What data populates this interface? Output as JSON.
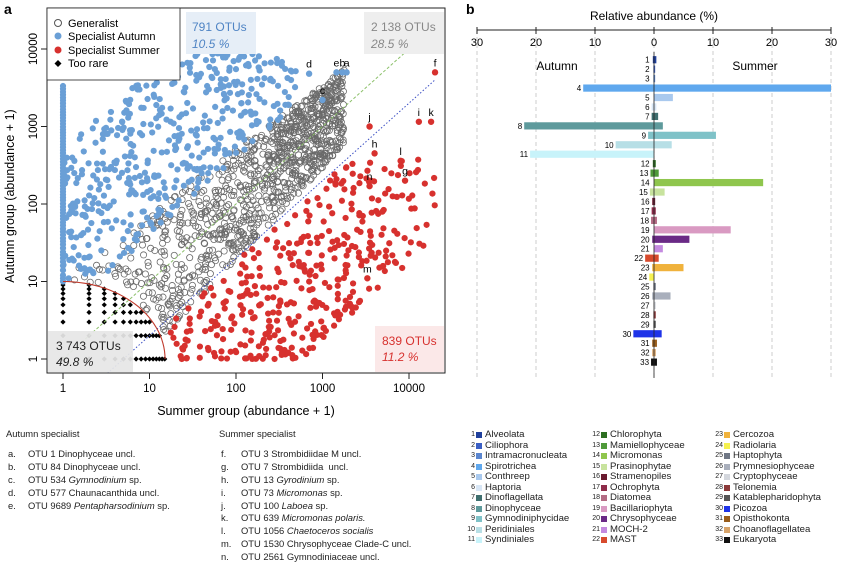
{
  "panel_a": {
    "letter": "a",
    "legend": [
      {
        "label": "Generalist",
        "marker": "circle-open",
        "color": "#555555"
      },
      {
        "label": "Specialist Autumn",
        "marker": "circle",
        "color": "#6a9fd6"
      },
      {
        "label": "Specialist Summer",
        "marker": "circle",
        "color": "#d7312e"
      },
      {
        "label": "Too rare",
        "marker": "diamond",
        "color": "#000000"
      }
    ],
    "boxes": {
      "autumn": {
        "count": "791 OTUs",
        "pct": "10.5 %",
        "color": "#4f84c4",
        "bg": "#e6eef7"
      },
      "generalist": {
        "count": "2 138 OTUs",
        "pct": "28.5 %",
        "color": "#777777",
        "bg": "#efefef"
      },
      "summer": {
        "count": "839 OTUs",
        "pct": "11.2 %",
        "color": "#d7312e",
        "bg": "#fbe8e8"
      },
      "rare": {
        "count": "3 743 OTUs",
        "pct": "49.8 %",
        "color": "#222222",
        "bg": "#e8e8e8"
      }
    },
    "point_labels": [
      "a",
      "b",
      "c",
      "d",
      "e",
      "f",
      "g",
      "h",
      "i",
      "j",
      "k",
      "l",
      "m",
      "n"
    ]
  },
  "chart_data": [
    {
      "type": "scatter",
      "xlabel": "Summer group (abundance + 1)",
      "ylabel": "Autumn group (abundance + 1)",
      "x_scale": "log",
      "y_scale": "log",
      "xlim": [
        1,
        20000
      ],
      "ylim": [
        1,
        20000
      ],
      "x_ticks": [
        "1",
        "10",
        "100",
        "1000",
        "10000"
      ],
      "y_ticks": [
        "1",
        "10",
        "100",
        "1000",
        "10000"
      ],
      "categories": [
        "Generalist",
        "Specialist Autumn",
        "Specialist Summer",
        "Too rare"
      ],
      "counts": [
        2138,
        791,
        839,
        3743
      ],
      "percentages": [
        28.5,
        10.5,
        11.2,
        49.8
      ],
      "labeled_points": [
        {
          "label": "a",
          "x": 1900,
          "y": 5000
        },
        {
          "label": "b",
          "x": 1700,
          "y": 5000
        },
        {
          "label": "c",
          "x": 1000,
          "y": 2200
        },
        {
          "label": "d",
          "x": 700,
          "y": 4800
        },
        {
          "label": "e",
          "x": 1450,
          "y": 5000
        },
        {
          "label": "f",
          "x": 20000,
          "y": 5000
        },
        {
          "label": "g",
          "x": 9000,
          "y": 200
        },
        {
          "label": "h",
          "x": 4000,
          "y": 450
        },
        {
          "label": "i",
          "x": 13000,
          "y": 1150
        },
        {
          "label": "j",
          "x": 3500,
          "y": 1000
        },
        {
          "label": "k",
          "x": 18000,
          "y": 1150
        },
        {
          "label": "l",
          "x": 8000,
          "y": 360
        },
        {
          "label": "m",
          "x": 3300,
          "y": 11
        },
        {
          "label": "n",
          "x": 3500,
          "y": 170
        }
      ]
    },
    {
      "type": "bar",
      "title": "Relative abundance (%)",
      "orientation": "horizontal",
      "x_ticks": [
        "30",
        "20",
        "10",
        "0",
        "10",
        "20",
        "30"
      ],
      "xlim": [
        -30,
        30
      ],
      "side_labels": {
        "left": "Autumn",
        "right": "Summer"
      },
      "categories": [
        "1",
        "2",
        "3",
        "4",
        "5",
        "6",
        "7",
        "8",
        "9",
        "10",
        "11",
        "12",
        "13",
        "14",
        "15",
        "16",
        "17",
        "18",
        "19",
        "20",
        "21",
        "22",
        "23",
        "24",
        "25",
        "26",
        "27",
        "28",
        "29",
        "30",
        "31",
        "32",
        "33"
      ],
      "series": [
        {
          "name": "Autumn",
          "values": [
            0.2,
            0.1,
            0.1,
            12,
            0,
            0.4,
            0.4,
            22,
            1,
            6.5,
            21,
            0.2,
            0.6,
            0,
            0.7,
            0.3,
            0.4,
            0.5,
            0,
            0.3,
            0,
            1.5,
            0.3,
            0.8,
            0.1,
            0.3,
            0,
            0.1,
            0.1,
            3.5,
            0.3,
            0.3,
            0.5
          ]
        },
        {
          "name": "Summer",
          "values": [
            0.4,
            0.2,
            0.2,
            30,
            3.2,
            0.4,
            0.7,
            1.5,
            10.5,
            3,
            0,
            0.3,
            0.8,
            18.5,
            1.8,
            0.2,
            0.3,
            0.5,
            13,
            6,
            1.5,
            0.8,
            5,
            0,
            0.3,
            2.8,
            0.3,
            0.3,
            0.3,
            1.3,
            0.5,
            0.3,
            0.5
          ]
        }
      ]
    }
  ],
  "panel_b": {
    "letter": "b",
    "legend": [
      {
        "num": "1",
        "label": "Alveolata",
        "color": "#1f3f9c"
      },
      {
        "num": "2",
        "label": "Ciliophora",
        "color": "#3b5fc4"
      },
      {
        "num": "3",
        "label": "Intramacronucleata",
        "color": "#5b86cf"
      },
      {
        "num": "4",
        "label": "Spirotrichea",
        "color": "#5fa8ee"
      },
      {
        "num": "5",
        "label": "Conthreep",
        "color": "#a9c9ee"
      },
      {
        "num": "6",
        "label": "Haptoria",
        "color": "#d8e6f5"
      },
      {
        "num": "7",
        "label": "Dinoflagellata",
        "color": "#3f6f6f"
      },
      {
        "num": "8",
        "label": "Dinophyceae",
        "color": "#5e9a9c"
      },
      {
        "num": "9",
        "label": "Gymnodiniphycidae",
        "color": "#7fc2c8"
      },
      {
        "num": "10",
        "label": "Peridiniales",
        "color": "#b7dfe6"
      },
      {
        "num": "11",
        "label": "Syndiniales",
        "color": "#c8f3fa"
      },
      {
        "num": "12",
        "label": "Chlorophyta",
        "color": "#2e6f22"
      },
      {
        "num": "13",
        "label": "Mamiellophyceae",
        "color": "#4f9a3a"
      },
      {
        "num": "14",
        "label": "Micromonas",
        "color": "#8fc64d"
      },
      {
        "num": "15",
        "label": "Prasinophytae",
        "color": "#c8e39e"
      },
      {
        "num": "16",
        "label": "Stramenopiles",
        "color": "#6a1a2f"
      },
      {
        "num": "17",
        "label": "Ochrophyta",
        "color": "#8e2c4a"
      },
      {
        "num": "18",
        "label": "Diatomea",
        "color": "#b36b84"
      },
      {
        "num": "19",
        "label": "Bacillariophyta",
        "color": "#d99ac2"
      },
      {
        "num": "20",
        "label": "Chrysophyceae",
        "color": "#6a2a86"
      },
      {
        "num": "21",
        "label": "MOCH-2",
        "color": "#c48ae0"
      },
      {
        "num": "22",
        "label": "MAST",
        "color": "#d74a2d"
      },
      {
        "num": "23",
        "label": "Cercozoa",
        "color": "#f0b23c"
      },
      {
        "num": "24",
        "label": "Radiolaria",
        "color": "#f6f14f"
      },
      {
        "num": "25",
        "label": "Haptophyta",
        "color": "#6f7785"
      },
      {
        "num": "26",
        "label": "Prymnesiophyceae",
        "color": "#a9afbc"
      },
      {
        "num": "27",
        "label": "Cryptophyceae",
        "color": "#d4d7dd"
      },
      {
        "num": "28",
        "label": "Telonemia",
        "color": "#8c3a3a"
      },
      {
        "num": "29",
        "label": "Katablepharidophyta",
        "color": "#555555"
      },
      {
        "num": "30",
        "label": "Picozoa",
        "color": "#1e33e8"
      },
      {
        "num": "31",
        "label": "Opisthokonta",
        "color": "#9a5e1c"
      },
      {
        "num": "32",
        "label": "Choanoflagellatea",
        "color": "#d8a46a"
      },
      {
        "num": "33",
        "label": "Eukaryota",
        "color": "#111111"
      }
    ]
  },
  "list_autumn": {
    "title": "Autumn specialist",
    "items": [
      {
        "key": "a.",
        "pre": "OTU 1 Dinophyceae uncl.",
        "ital": "",
        "post": ""
      },
      {
        "key": "b.",
        "pre": "OTU 84 Dinophyceae uncl.",
        "ital": "",
        "post": ""
      },
      {
        "key": "c.",
        "pre": "OTU 534 ",
        "ital": "Gymnodinium",
        "post": " sp."
      },
      {
        "key": "d.",
        "pre": "OTU 577 Chaunacanthida uncl.",
        "ital": "",
        "post": ""
      },
      {
        "key": "e.",
        "pre": "OTU 9689 ",
        "ital": "Pentapharsodinium",
        "post": " sp."
      }
    ]
  },
  "list_summer": {
    "title": "Summer specialist",
    "items": [
      {
        "key": "f.",
        "pre": "OTU 3 Strombidiidae M uncl.",
        "ital": "",
        "post": ""
      },
      {
        "key": "g.",
        "pre": "OTU 7 Strombidiida  uncl.",
        "ital": "",
        "post": ""
      },
      {
        "key": "h.",
        "pre": "OTU 13 ",
        "ital": "Gyrodinium",
        "post": " sp."
      },
      {
        "key": "i.",
        "pre": "OTU 73 ",
        "ital": "Micromonas",
        "post": " sp."
      },
      {
        "key": "j.",
        "pre": "OTU 100 ",
        "ital": "Laboea",
        "post": " sp."
      },
      {
        "key": "k.",
        "pre": "OTU 639 ",
        "ital": "Micromonas polaris.",
        "post": ""
      },
      {
        "key": "l.",
        "pre": "OTU 1056 ",
        "ital": "Chaetoceros socialis",
        "post": ""
      },
      {
        "key": "m.",
        "pre": "OTU 1530 Chrysophyceae Clade-C uncl.",
        "ital": "",
        "post": ""
      },
      {
        "key": "n.",
        "pre": "OTU 2561 Gymnodiniaceae uncl.",
        "ital": "",
        "post": ""
      }
    ]
  }
}
